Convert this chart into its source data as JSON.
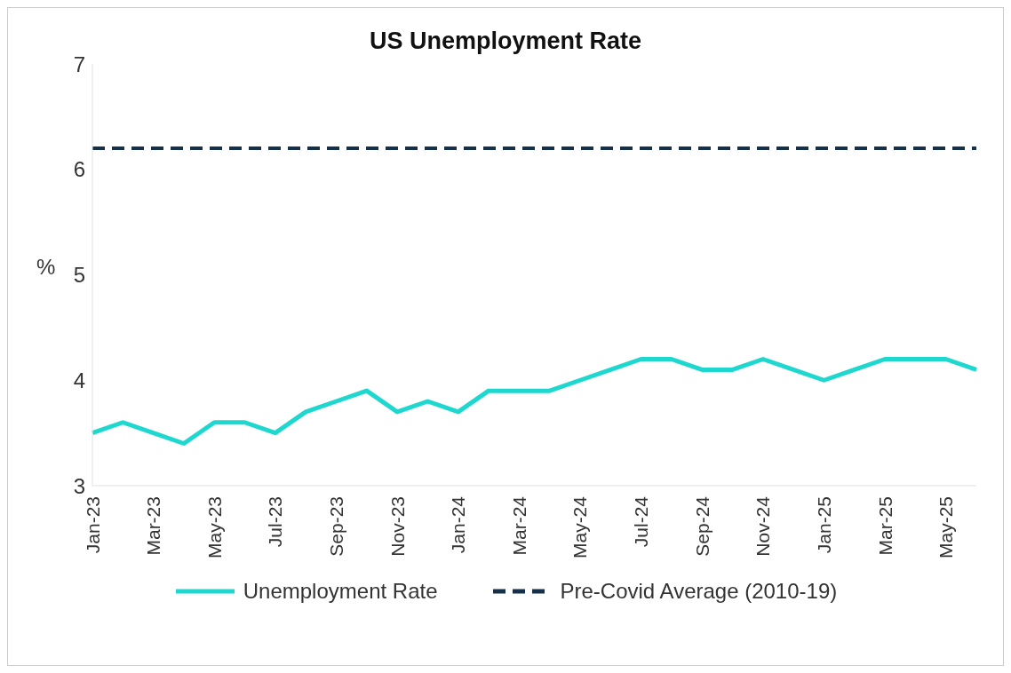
{
  "chart_data": {
    "type": "line",
    "title": "US Unemployment Rate",
    "ylabel": "%",
    "categories": [
      "Jan-23",
      null,
      "Mar-23",
      null,
      "May-23",
      null,
      "Jul-23",
      null,
      "Sep-23",
      null,
      "Nov-23",
      null,
      "Jan-24",
      null,
      "Mar-24",
      null,
      "May-24",
      null,
      "Jul-24",
      null,
      "Sep-24",
      null,
      "Nov-24",
      null,
      "Jan-25",
      null,
      "Mar-25",
      null,
      "May-25",
      null
    ],
    "series": [
      {
        "name": "Unemployment Rate",
        "color": "#1ed8d0",
        "values": [
          3.5,
          3.6,
          3.5,
          3.4,
          3.6,
          3.6,
          3.5,
          3.7,
          3.8,
          3.9,
          3.7,
          3.8,
          3.7,
          3.9,
          3.9,
          3.9,
          4.0,
          4.1,
          4.2,
          4.2,
          4.1,
          4.1,
          4.2,
          4.1,
          4.0,
          4.1,
          4.2,
          4.2,
          4.2,
          4.1
        ]
      }
    ],
    "ref_lines": [
      {
        "axis": "y",
        "value": 6.2,
        "label": "Pre-Covid Average (2010-19)",
        "color": "#14304b",
        "line_style": "dashed"
      }
    ],
    "ylim": [
      3,
      7
    ],
    "yticks": [
      3,
      4,
      5,
      6,
      7
    ],
    "grid": false,
    "legend": "bottom",
    "marker": "none",
    "line_style": "solid"
  }
}
